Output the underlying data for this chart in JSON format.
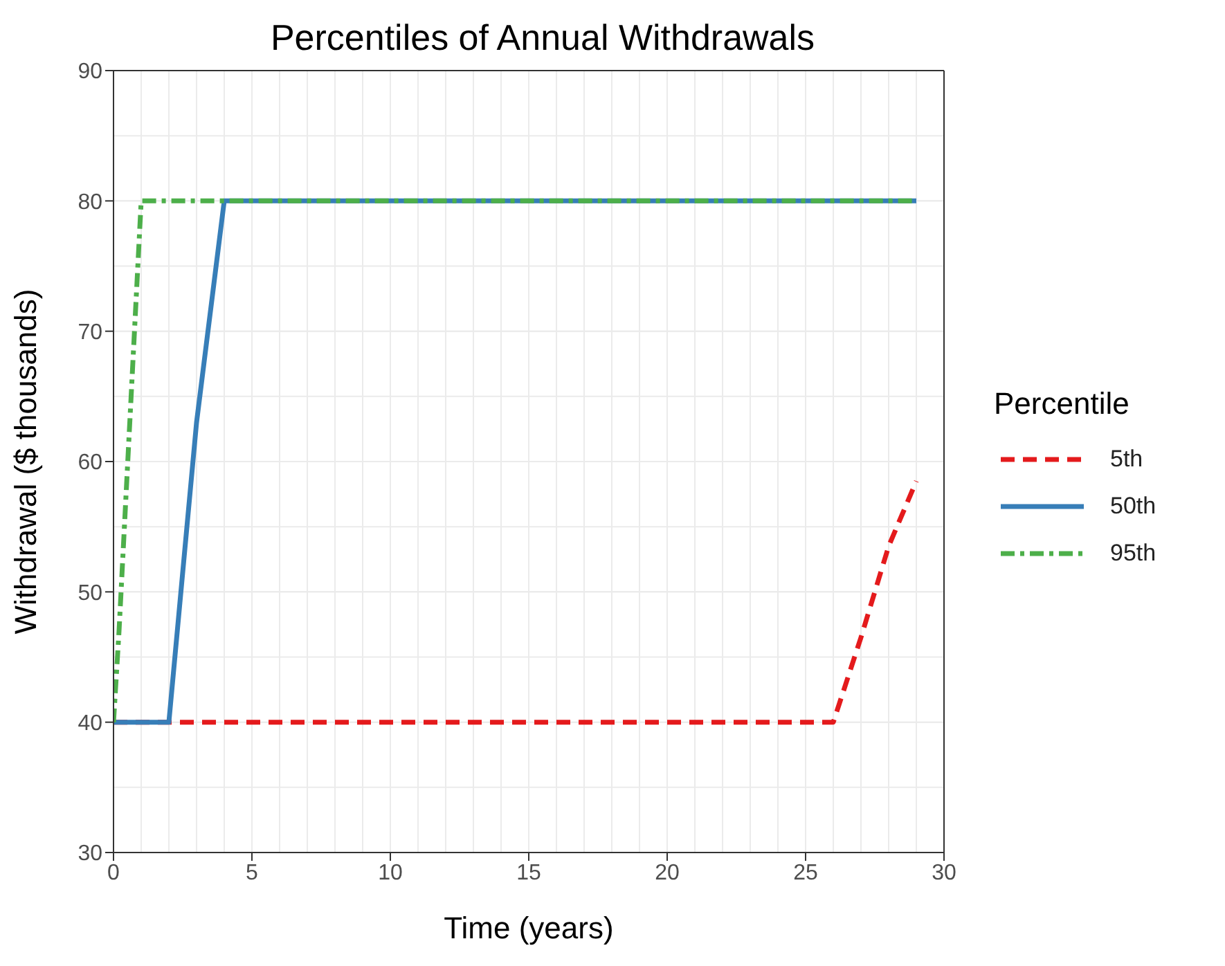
{
  "chart_data": {
    "type": "line",
    "title": "Percentiles of Annual Withdrawals",
    "xlabel": "Time (years)",
    "ylabel": "Withdrawal ($ thousands)",
    "legend_title": "Percentile",
    "legend": "right",
    "grid": true,
    "marker": "none",
    "xlim": [
      0,
      30
    ],
    "xticks": [
      0,
      5,
      10,
      15,
      20,
      25,
      30
    ],
    "ylim": [
      30,
      90
    ],
    "yticks": [
      30,
      40,
      50,
      60,
      70,
      80,
      90
    ],
    "series": [
      {
        "name": "5th",
        "color": "#e41a1c",
        "line_style": "dashed",
        "x": [
          0,
          1,
          2,
          3,
          4,
          5,
          6,
          7,
          8,
          9,
          10,
          11,
          12,
          13,
          14,
          15,
          16,
          17,
          18,
          19,
          20,
          21,
          22,
          23,
          24,
          25,
          26,
          27,
          28,
          29
        ],
        "values": [
          40,
          40,
          40,
          40,
          40,
          40,
          40,
          40,
          40,
          40,
          40,
          40,
          40,
          40,
          40,
          40,
          40,
          40,
          40,
          40,
          40,
          40,
          40,
          40,
          40,
          40,
          40,
          46.5,
          53.5,
          58.5
        ]
      },
      {
        "name": "50th",
        "color": "#377eb8",
        "line_style": "solid",
        "x": [
          0,
          1,
          2,
          3,
          4,
          5,
          10,
          15,
          20,
          25,
          29
        ],
        "values": [
          40,
          40,
          40,
          63,
          80,
          80,
          80,
          80,
          80,
          80,
          80
        ]
      },
      {
        "name": "95th",
        "color": "#4daf4a",
        "line_style": "dashdot",
        "x": [
          0,
          0.2,
          1,
          2,
          3,
          4,
          5,
          10,
          15,
          20,
          25,
          29
        ],
        "values": [
          40,
          47,
          80,
          80,
          80,
          80,
          80,
          80,
          80,
          80,
          80,
          80
        ]
      }
    ]
  }
}
